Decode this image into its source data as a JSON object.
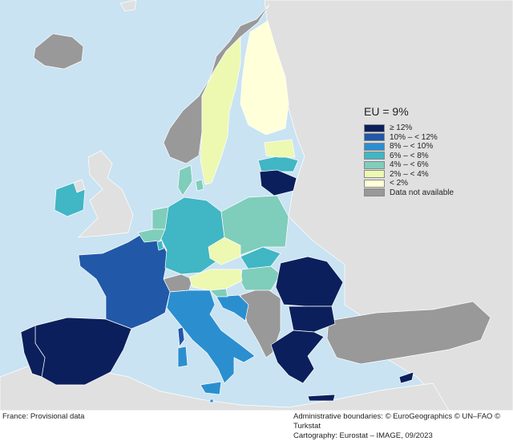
{
  "legend": {
    "title": "EU = 9%",
    "items": [
      {
        "label": "≥ 12%",
        "color": "#0b1f5c"
      },
      {
        "label": "10% – < 12%",
        "color": "#2158a8"
      },
      {
        "label": "8% – < 10%",
        "color": "#2b8fcf"
      },
      {
        "label": "6% – < 8%",
        "color": "#41b6c4"
      },
      {
        "label": "4% – < 6%",
        "color": "#7fcdbb"
      },
      {
        "label": "2% – < 4%",
        "color": "#edf8b1"
      },
      {
        "label": "< 2%",
        "color": "#ffffd9"
      },
      {
        "label": "Data not available",
        "color": "#999999"
      }
    ]
  },
  "map_data": {
    "unit": "%",
    "eu_average": 9,
    "countries": [
      {
        "name": "Spain",
        "class": "≥ 12%"
      },
      {
        "name": "Portugal",
        "class": "≥ 12%"
      },
      {
        "name": "Greece",
        "class": "≥ 12%"
      },
      {
        "name": "Romania",
        "class": "≥ 12%"
      },
      {
        "name": "Bulgaria",
        "class": "≥ 12%"
      },
      {
        "name": "Lithuania",
        "class": "≥ 12%"
      },
      {
        "name": "Cyprus",
        "class": "≥ 12%"
      },
      {
        "name": "France",
        "class": "10% – < 12%"
      },
      {
        "name": "Italy",
        "class": "8% – < 10%"
      },
      {
        "name": "Croatia",
        "class": "8% – < 10%"
      },
      {
        "name": "Malta",
        "class": "8% – < 10%"
      },
      {
        "name": "Germany",
        "class": "6% – < 8%"
      },
      {
        "name": "Ireland",
        "class": "6% – < 8%"
      },
      {
        "name": "Latvia",
        "class": "6% – < 8%"
      },
      {
        "name": "Slovakia",
        "class": "6% – < 8%"
      },
      {
        "name": "Luxembourg",
        "class": "6% – < 8%"
      },
      {
        "name": "Poland",
        "class": "4% – < 6%"
      },
      {
        "name": "Denmark",
        "class": "4% – < 6%"
      },
      {
        "name": "Netherlands",
        "class": "4% – < 6%"
      },
      {
        "name": "Belgium",
        "class": "4% – < 6%"
      },
      {
        "name": "Hungary",
        "class": "4% – < 6%"
      },
      {
        "name": "Slovenia",
        "class": "4% – < 6%"
      },
      {
        "name": "Sweden",
        "class": "2% – < 4%"
      },
      {
        "name": "Czechia",
        "class": "2% – < 4%"
      },
      {
        "name": "Austria",
        "class": "2% – < 4%"
      },
      {
        "name": "Estonia",
        "class": "2% – < 4%"
      },
      {
        "name": "Finland",
        "class": "< 2%"
      },
      {
        "name": "Norway",
        "class": "Data not available"
      },
      {
        "name": "Iceland",
        "class": "Data not available"
      },
      {
        "name": "Switzerland",
        "class": "Data not available"
      },
      {
        "name": "Serbia",
        "class": "Data not available"
      },
      {
        "name": "Bosnia and Herzegovina",
        "class": "Data not available"
      },
      {
        "name": "Montenegro",
        "class": "Data not available"
      },
      {
        "name": "North Macedonia",
        "class": "Data not available"
      },
      {
        "name": "Albania",
        "class": "Data not available"
      },
      {
        "name": "Türkiye",
        "class": "Data not available"
      }
    ]
  },
  "footer": {
    "note": "France: Provisional data",
    "boundaries": "Administrative boundaries: © EuroGeographics © UN–FAO © Turkstat",
    "cartography": "Cartography: Eurostat – IMAGE, 09/2023"
  }
}
